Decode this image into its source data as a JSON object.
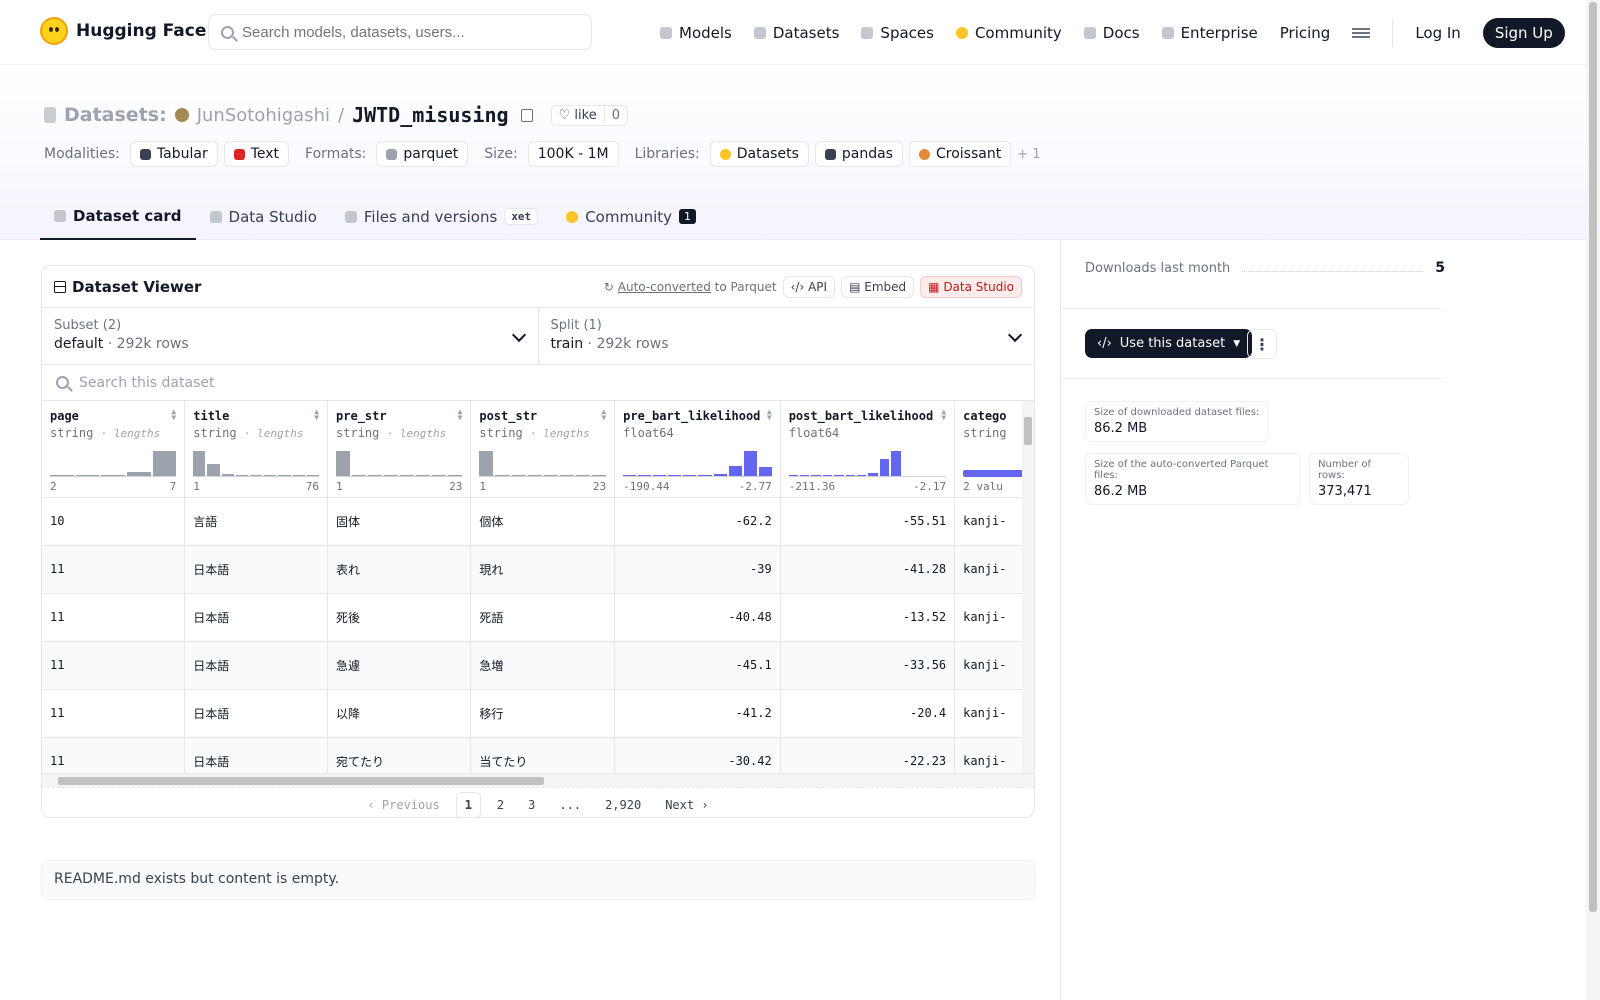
{
  "topbar": {
    "brand": "Hugging Face",
    "search_placeholder": "Search models, datasets, users...",
    "nav": [
      "Models",
      "Datasets",
      "Spaces",
      "Community",
      "Docs",
      "Enterprise",
      "Pricing"
    ],
    "login": "Log In",
    "signup": "Sign Up"
  },
  "header": {
    "section": "Datasets:",
    "owner": "JunSotohigashi",
    "separator": "/",
    "dataset_name": "JWTD_misusing",
    "like_label": "like",
    "like_count": "0",
    "modalities_label": "Modalities:",
    "modalities": [
      "Tabular",
      "Text"
    ],
    "formats_label": "Formats:",
    "formats": [
      "parquet"
    ],
    "size_label": "Size:",
    "size": "100K - 1M",
    "libraries_label": "Libraries:",
    "libraries": [
      "Datasets",
      "pandas",
      "Croissant"
    ],
    "libraries_more": "+ 1"
  },
  "tabs": {
    "dataset_card": "Dataset card",
    "data_studio": "Data Studio",
    "files": "Files and versions",
    "xet": "xet",
    "community": "Community",
    "community_count": "1"
  },
  "viewer": {
    "title": "Dataset Viewer",
    "auto_converted": "Auto-converted",
    "to_parquet": "to Parquet",
    "api": "API",
    "embed": "Embed",
    "data_studio": "Data Studio",
    "subset_label": "Subset (2)",
    "subset_value": "default",
    "subset_rows": "292k rows",
    "split_label": "Split (1)",
    "split_value": "train",
    "split_rows": "292k rows",
    "search_placeholder": "Search this dataset",
    "columns": [
      {
        "name": "page",
        "type": "string",
        "sub": "lengths",
        "min": "2",
        "max": "7"
      },
      {
        "name": "title",
        "type": "string",
        "sub": "lengths",
        "min": "1",
        "max": "76"
      },
      {
        "name": "pre_str",
        "type": "string",
        "sub": "lengths",
        "min": "1",
        "max": "23"
      },
      {
        "name": "post_str",
        "type": "string",
        "sub": "lengths",
        "min": "1",
        "max": "23"
      },
      {
        "name": "pre_bart_likelihood",
        "type": "float64",
        "sub": "",
        "min": "-190.44",
        "max": "-2.77"
      },
      {
        "name": "post_bart_likelihood",
        "type": "float64",
        "sub": "",
        "min": "-211.36",
        "max": "-2.17"
      },
      {
        "name": "catego",
        "type": "string",
        "sub": "",
        "min": "2 valu",
        "max": ""
      }
    ],
    "rows": [
      [
        "10",
        "言語",
        "固体",
        "個体",
        "-62.2",
        "-55.51",
        "kanji-"
      ],
      [
        "11",
        "日本語",
        "表れ",
        "現れ",
        "-39",
        "-41.28",
        "kanji-"
      ],
      [
        "11",
        "日本語",
        "死後",
        "死語",
        "-40.48",
        "-13.52",
        "kanji-"
      ],
      [
        "11",
        "日本語",
        "急遽",
        "急増",
        "-45.1",
        "-33.56",
        "kanji-"
      ],
      [
        "11",
        "日本語",
        "以降",
        "移行",
        "-41.2",
        "-20.4",
        "kanji-"
      ],
      [
        "11",
        "日本語",
        "宛てたり",
        "当てたり",
        "-30.42",
        "-22.23",
        "kanji-"
      ]
    ],
    "pager": {
      "prev": "Previous",
      "pages": [
        "1",
        "2",
        "3",
        "...",
        "2,920"
      ],
      "next": "Next"
    }
  },
  "readme": "README.md exists but content is empty.",
  "sidebar": {
    "downloads_label": "Downloads last month",
    "downloads_value": "5",
    "use_button": "Use this dataset",
    "stats": [
      {
        "k": "Size of downloaded dataset files:",
        "v": "86.2 MB"
      },
      {
        "k": "Size of the auto-converted Parquet files:",
        "v": "86.2 MB"
      },
      {
        "k": "Number of rows:",
        "v": "373,471"
      }
    ]
  }
}
